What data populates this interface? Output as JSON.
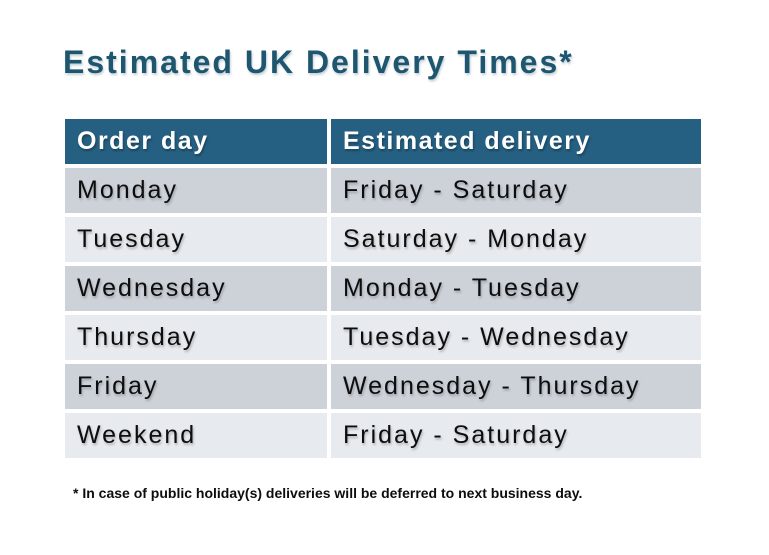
{
  "title": "Estimated UK Delivery Times*",
  "table": {
    "columns": [
      "Order day",
      "Estimated delivery"
    ],
    "rows": [
      {
        "order_day": "Monday",
        "delivery": "Friday - Saturday"
      },
      {
        "order_day": "Tuesday",
        "delivery": "Saturday - Monday"
      },
      {
        "order_day": "Wednesday",
        "delivery": "Monday - Tuesday"
      },
      {
        "order_day": "Thursday",
        "delivery": "Tuesday - Wednesday"
      },
      {
        "order_day": "Friday",
        "delivery": "Wednesday - Thursday"
      },
      {
        "order_day": "Weekend",
        "delivery": "Friday - Saturday"
      }
    ]
  },
  "footnote": "* In case of public holiday(s) deliveries will be deferred to next business day.",
  "colors": {
    "title_text": "#1E5670",
    "header_bg": "#256082",
    "header_text": "#FFFFFF",
    "row_dark_bg": "#CDD1D8",
    "row_light_bg": "#E7EAEE",
    "cell_text": "#0D0D0D",
    "background": "#FFFFFF"
  }
}
